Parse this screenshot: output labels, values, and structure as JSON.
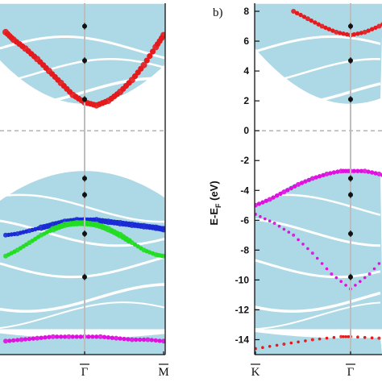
{
  "chart_data": [
    {
      "type": "band-structure",
      "panel_label": "",
      "ylim": [
        -15,
        8
      ],
      "xlabel": "",
      "ylabel": "",
      "kpoints": [
        "Γ",
        "M"
      ],
      "kpoint_bar": [
        true,
        true
      ],
      "fermi_level": 0,
      "projections": [
        {
          "color": "#e41a1c",
          "k": [
            0.0,
            0.1,
            0.25,
            0.4,
            0.55,
            0.7,
            0.85,
            1.0,
            1.15,
            1.3,
            1.45,
            1.6,
            1.75,
            1.9,
            2.0
          ],
          "E": [
            6.6,
            6.1,
            5.5,
            4.8,
            4.0,
            3.2,
            2.4,
            1.9,
            1.7,
            2.0,
            2.6,
            3.4,
            4.4,
            5.6,
            6.4
          ],
          "size": [
            4,
            4,
            4,
            4,
            4,
            4,
            4,
            4,
            4,
            4,
            4,
            4,
            4,
            4,
            4
          ]
        },
        {
          "color": "#1a2bd6",
          "k": [
            0.0,
            0.15,
            0.3,
            0.45,
            0.6,
            0.75,
            0.9,
            1.0,
            1.15,
            1.3,
            1.45,
            1.6,
            1.75,
            1.9,
            2.0
          ],
          "E": [
            -7.0,
            -6.9,
            -6.7,
            -6.5,
            -6.3,
            -6.1,
            -6.0,
            -6.0,
            -6.0,
            -6.1,
            -6.2,
            -6.3,
            -6.4,
            -6.5,
            -6.6
          ],
          "size": [
            3,
            3,
            3,
            4,
            4,
            4,
            4,
            4,
            4,
            4,
            4,
            4,
            4,
            4,
            4
          ]
        },
        {
          "color": "#22dd22",
          "k": [
            0.0,
            0.15,
            0.3,
            0.45,
            0.6,
            0.75,
            0.9,
            1.0,
            1.15,
            1.3,
            1.45,
            1.6,
            1.75,
            1.9,
            2.0
          ],
          "E": [
            -8.4,
            -8.0,
            -7.5,
            -7.0,
            -6.6,
            -6.3,
            -6.2,
            -6.2,
            -6.3,
            -6.6,
            -7.0,
            -7.5,
            -8.0,
            -8.3,
            -8.4
          ],
          "size": [
            3,
            3,
            3,
            3,
            4,
            4,
            4,
            4,
            4,
            4,
            4,
            3,
            3,
            3,
            3
          ]
        },
        {
          "color": "#e010e0",
          "k": [
            0.0,
            0.2,
            0.4,
            0.6,
            0.8,
            1.0,
            1.2,
            1.4,
            1.6,
            1.8,
            2.0
          ],
          "E": [
            -14.1,
            -14.0,
            -13.9,
            -13.8,
            -13.8,
            -13.8,
            -13.8,
            -13.9,
            -14.0,
            -14.0,
            -14.1
          ],
          "size": [
            3,
            3,
            3,
            3,
            3,
            3,
            3,
            3,
            3,
            3,
            3
          ]
        }
      ],
      "markers_at_gamma": [
        7.0,
        4.7,
        2.1,
        -3.2,
        -4.3,
        -6.9,
        -9.8
      ]
    },
    {
      "type": "band-structure",
      "panel_label": "b)",
      "ylim": [
        -15,
        8
      ],
      "yticks": [
        8,
        6,
        4,
        2,
        0,
        -2,
        -4,
        -6,
        -8,
        -10,
        -12,
        -14
      ],
      "xlabel": "",
      "ylabel_parts": {
        "main": "E-E",
        "sub": "F",
        "unit": " (eV)"
      },
      "kpoints": [
        "K",
        "Γ"
      ],
      "kpoint_bar": [
        true,
        true
      ],
      "fermi_level": 0,
      "projections": [
        {
          "color": "#e41a1c",
          "k": [
            0.4,
            0.55,
            0.7,
            0.85,
            1.0,
            1.15,
            1.3,
            1.45,
            1.6
          ],
          "E": [
            8.0,
            7.5,
            7.0,
            6.6,
            6.4,
            6.6,
            7.0,
            7.5,
            8.0
          ],
          "size": [
            3,
            3,
            3,
            3,
            3,
            3,
            3,
            3,
            3
          ]
        },
        {
          "color": "#e41a1c",
          "k": [
            0.0,
            0.3,
            0.6,
            0.9,
            1.0,
            1.3,
            1.6,
            2.0
          ],
          "E": [
            -14.6,
            -14.3,
            -14.0,
            -13.8,
            -13.8,
            -13.9,
            -14.1,
            -14.4
          ],
          "size": [
            2,
            2,
            2,
            2,
            2,
            2,
            2,
            2
          ]
        },
        {
          "color": "#e010e0",
          "k": [
            0.0,
            0.15,
            0.3,
            0.45,
            0.6,
            0.75,
            0.9,
            1.0,
            1.15,
            1.3,
            1.45,
            1.6,
            1.75,
            1.9,
            2.0
          ],
          "E": [
            -5.0,
            -4.6,
            -4.1,
            -3.6,
            -3.2,
            -2.9,
            -2.7,
            -2.7,
            -2.7,
            -2.9,
            -3.2,
            -3.6,
            -4.1,
            -4.6,
            -5.0
          ],
          "size": [
            3,
            3,
            3,
            3,
            3,
            3,
            3,
            3,
            3,
            3,
            3,
            3,
            3,
            3,
            3
          ]
        },
        {
          "color": "#e010e0",
          "k": [
            0.0,
            0.2,
            0.4,
            0.6,
            0.8,
            1.0,
            1.2,
            1.4,
            1.6,
            1.8,
            2.0
          ],
          "E": [
            -5.6,
            -6.2,
            -7.0,
            -8.2,
            -9.6,
            -10.6,
            -9.6,
            -8.2,
            -7.0,
            -6.2,
            -5.6
          ],
          "size": [
            2,
            2,
            2,
            2,
            2,
            2,
            2,
            2,
            2,
            2,
            2
          ]
        }
      ],
      "markers_at_gamma": [
        7.0,
        4.7,
        2.1,
        -3.2,
        -4.3,
        -6.9,
        -9.8
      ]
    }
  ],
  "colors": {
    "band_fill": "#add8e6",
    "frame": "#111111",
    "fermi_line": "#9a9a9a",
    "gamma_line": "#bdbdbd",
    "marker": "#111111"
  }
}
